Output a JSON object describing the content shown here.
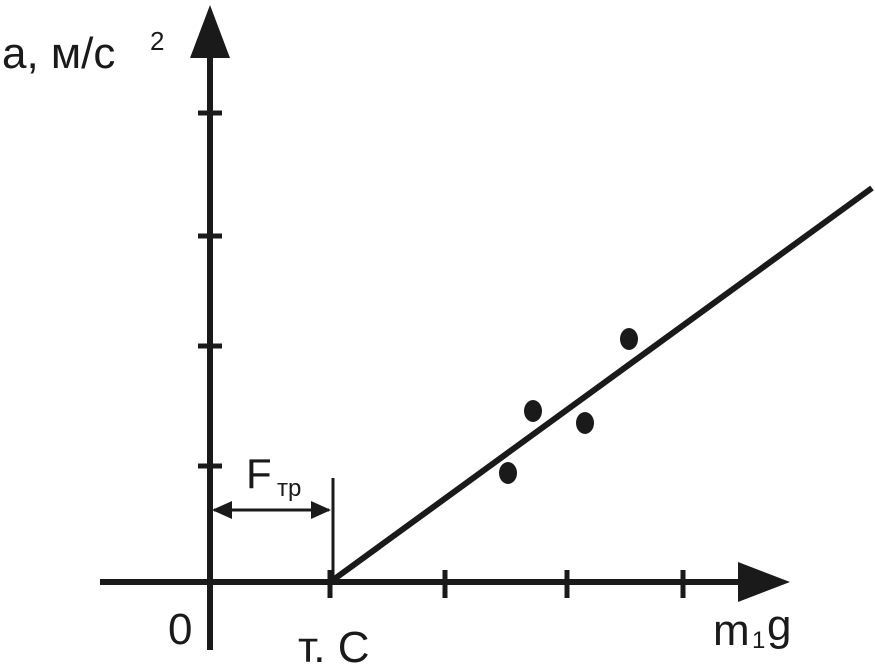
{
  "y_axis": {
    "label": "а, м/с",
    "label_sup": "2"
  },
  "x_axis": {
    "label": "m",
    "label_sub": "1",
    "label_end": "g"
  },
  "origin": "0",
  "point_c": "т. С",
  "friction": {
    "label": "F",
    "label_sub": "тр"
  }
}
